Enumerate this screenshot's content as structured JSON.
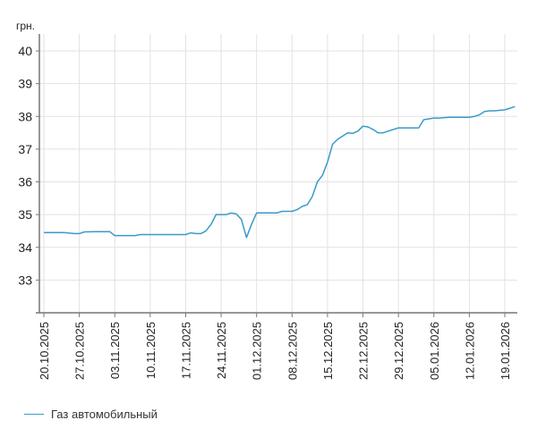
{
  "chart_data": {
    "type": "line",
    "title": "",
    "xlabel": "",
    "ylabel": "грн.",
    "ylim": [
      32,
      40
    ],
    "yticks": [
      33,
      34,
      35,
      36,
      37,
      38,
      39,
      40
    ],
    "grid": true,
    "legend_position": "bottom-left",
    "xtick_labels": [
      "20.10.2025",
      "27.10.2025",
      "03.11.2025",
      "10.11.2025",
      "17.11.2025",
      "24.11.2025",
      "01.12.2025",
      "08.12.2025",
      "15.12.2025",
      "22.12.2025",
      "29.12.2025",
      "05.01.2026",
      "12.01.2026",
      "19.01.2026"
    ],
    "series": [
      {
        "name": "Газ автомобильный",
        "color": "#3a9bc8",
        "points": [
          [
            "20.10.2025",
            34.45
          ],
          [
            "22.10.2025",
            34.45
          ],
          [
            "24.10.2025",
            34.45
          ],
          [
            "26.10.2025",
            34.42
          ],
          [
            "27.10.2025",
            34.42
          ],
          [
            "28.10.2025",
            34.47
          ],
          [
            "30.10.2025",
            34.48
          ],
          [
            "01.11.2025",
            34.48
          ],
          [
            "02.11.2025",
            34.48
          ],
          [
            "03.11.2025",
            34.36
          ],
          [
            "05.11.2025",
            34.36
          ],
          [
            "07.11.2025",
            34.36
          ],
          [
            "08.11.2025",
            34.39
          ],
          [
            "10.11.2025",
            34.39
          ],
          [
            "12.11.2025",
            34.39
          ],
          [
            "14.11.2025",
            34.39
          ],
          [
            "17.11.2025",
            34.39
          ],
          [
            "18.11.2025",
            34.44
          ],
          [
            "19.11.2025",
            34.42
          ],
          [
            "20.11.2025",
            34.42
          ],
          [
            "21.11.2025",
            34.5
          ],
          [
            "22.11.2025",
            34.7
          ],
          [
            "23.11.2025",
            35.0
          ],
          [
            "24.11.2025",
            35.0
          ],
          [
            "25.11.2025",
            35.0
          ],
          [
            "26.11.2025",
            35.05
          ],
          [
            "27.11.2025",
            35.02
          ],
          [
            "28.11.2025",
            34.85
          ],
          [
            "29.11.2025",
            34.3
          ],
          [
            "30.11.2025",
            34.7
          ],
          [
            "01.12.2025",
            35.05
          ],
          [
            "03.12.2025",
            35.05
          ],
          [
            "05.12.2025",
            35.05
          ],
          [
            "06.12.2025",
            35.1
          ],
          [
            "08.12.2025",
            35.1
          ],
          [
            "09.12.2025",
            35.15
          ],
          [
            "10.12.2025",
            35.25
          ],
          [
            "11.12.2025",
            35.3
          ],
          [
            "12.12.2025",
            35.55
          ],
          [
            "13.12.2025",
            36.0
          ],
          [
            "14.12.2025",
            36.2
          ],
          [
            "15.12.2025",
            36.6
          ],
          [
            "16.12.2025",
            37.15
          ],
          [
            "17.12.2025",
            37.3
          ],
          [
            "18.12.2025",
            37.4
          ],
          [
            "19.12.2025",
            37.5
          ],
          [
            "20.12.2025",
            37.48
          ],
          [
            "21.12.2025",
            37.55
          ],
          [
            "22.12.2025",
            37.7
          ],
          [
            "23.12.2025",
            37.68
          ],
          [
            "24.12.2025",
            37.6
          ],
          [
            "25.12.2025",
            37.5
          ],
          [
            "26.12.2025",
            37.5
          ],
          [
            "27.12.2025",
            37.55
          ],
          [
            "29.12.2025",
            37.65
          ],
          [
            "30.12.2025",
            37.65
          ],
          [
            "31.12.2025",
            37.65
          ],
          [
            "02.01.2026",
            37.65
          ],
          [
            "03.01.2026",
            37.9
          ],
          [
            "05.01.2026",
            37.95
          ],
          [
            "06.01.2026",
            37.95
          ],
          [
            "08.01.2026",
            37.97
          ],
          [
            "10.01.2026",
            37.97
          ],
          [
            "12.01.2026",
            37.97
          ],
          [
            "13.01.2026",
            38.0
          ],
          [
            "14.01.2026",
            38.05
          ],
          [
            "15.01.2026",
            38.15
          ],
          [
            "16.01.2026",
            38.17
          ],
          [
            "17.01.2026",
            38.17
          ],
          [
            "19.01.2026",
            38.2
          ],
          [
            "20.01.2026",
            38.25
          ],
          [
            "21.01.2026",
            38.3
          ]
        ]
      }
    ]
  },
  "axis": {
    "y_unit_label": "грн."
  },
  "legend": {
    "items": [
      {
        "label": "Газ автомобильный",
        "color": "#3a9bc8"
      }
    ]
  }
}
